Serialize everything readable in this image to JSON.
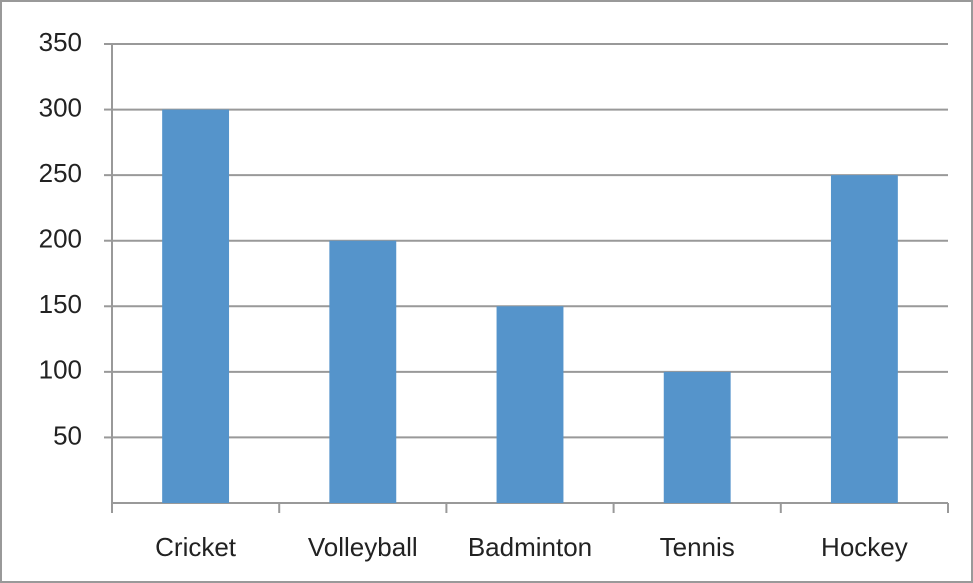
{
  "chart_data": {
    "type": "bar",
    "categories": [
      "Cricket",
      "Volleyball",
      "Badminton",
      "Tennis",
      "Hockey"
    ],
    "values": [
      300,
      200,
      150,
      100,
      250
    ],
    "color": "#5594cb",
    "ylim": [
      0,
      350
    ],
    "yticks": [
      50,
      100,
      150,
      200,
      250,
      300,
      350
    ],
    "grid": true
  }
}
